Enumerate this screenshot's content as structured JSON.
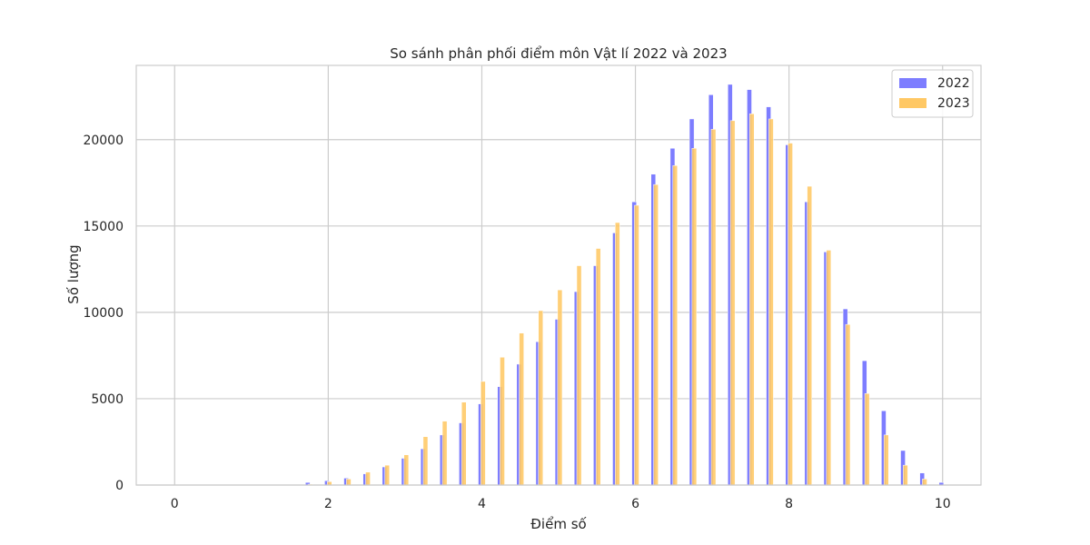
{
  "chart_data": {
    "type": "bar",
    "title": "So sánh phân phối điểm môn Vật lí 2022 và 2023",
    "xlabel": "Điểm số",
    "ylabel": "Số lượng",
    "xlim": [
      -0.5,
      10.5
    ],
    "ylim": [
      0,
      24300
    ],
    "xticks": [
      0,
      2,
      4,
      6,
      8,
      10
    ],
    "yticks": [
      0,
      5000,
      10000,
      15000,
      20000
    ],
    "grid": true,
    "legend_position": "top-right",
    "series": [
      {
        "name": "2022",
        "color": "#7d7dff",
        "x": [
          1.75,
          2.0,
          2.25,
          2.5,
          2.75,
          3.0,
          3.25,
          3.5,
          3.75,
          4.0,
          4.25,
          4.5,
          4.75,
          5.0,
          5.25,
          5.5,
          5.75,
          6.0,
          6.25,
          6.5,
          6.75,
          7.0,
          7.25,
          7.5,
          7.75,
          8.0,
          8.25,
          8.5,
          8.75,
          9.0,
          9.25,
          9.5,
          9.75,
          10.0
        ],
        "values": [
          150,
          250,
          400,
          650,
          1050,
          1550,
          2100,
          2900,
          3600,
          4700,
          5700,
          7000,
          8300,
          9600,
          11200,
          12700,
          14600,
          16400,
          18000,
          19500,
          21200,
          22600,
          23200,
          22900,
          21900,
          19700,
          16400,
          13500,
          10200,
          7200,
          4300,
          2000,
          700,
          150
        ]
      },
      {
        "name": "2023",
        "color": "#ffc864",
        "x": [
          1.75,
          2.0,
          2.25,
          2.5,
          2.75,
          3.0,
          3.25,
          3.5,
          3.75,
          4.0,
          4.25,
          4.5,
          4.75,
          5.0,
          5.25,
          5.5,
          5.75,
          6.0,
          6.25,
          6.5,
          6.75,
          7.0,
          7.25,
          7.5,
          7.75,
          8.0,
          8.25,
          8.5,
          8.75,
          9.0,
          9.25,
          9.5,
          9.75,
          10.0
        ],
        "values": [
          50,
          200,
          350,
          750,
          1150,
          1750,
          2800,
          3700,
          4800,
          6000,
          7400,
          8800,
          10100,
          11300,
          12700,
          13700,
          15200,
          16200,
          17400,
          18500,
          19500,
          20600,
          21100,
          21500,
          21200,
          19800,
          17300,
          13600,
          9300,
          5300,
          2900,
          1150,
          350,
          0
        ]
      }
    ]
  }
}
